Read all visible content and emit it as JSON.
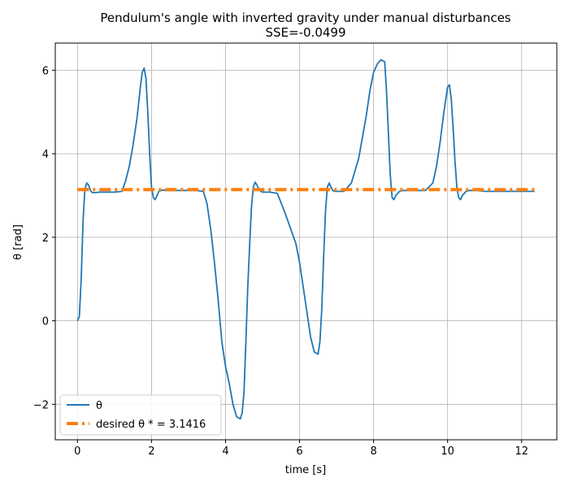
{
  "chart_data": {
    "type": "line",
    "title": "Pendulum's angle with inverted gravity under manual disturbances",
    "subtitle": "SSE=-0.0499",
    "xlabel": "time [s]",
    "ylabel": "θ [rad]",
    "xlim": [
      -0.6,
      12.95
    ],
    "ylim": [
      -2.85,
      6.65
    ],
    "xticks": [
      0,
      2,
      4,
      6,
      8,
      10,
      12
    ],
    "yticks": [
      -2,
      0,
      2,
      4,
      6
    ],
    "xtick_labels": [
      "0",
      "2",
      "4",
      "6",
      "8",
      "10",
      "12"
    ],
    "ytick_labels": [
      "−2",
      "0",
      "2",
      "4",
      "6"
    ],
    "grid": true,
    "legend_position": "lower-left",
    "series": [
      {
        "name": "θ",
        "color": "#1f77b4",
        "style": "solid",
        "x": [
          0.0,
          0.05,
          0.1,
          0.15,
          0.2,
          0.25,
          0.3,
          0.35,
          0.4,
          0.5,
          0.6,
          0.8,
          1.0,
          1.2,
          1.3,
          1.4,
          1.5,
          1.6,
          1.65,
          1.7,
          1.75,
          1.8,
          1.85,
          1.9,
          1.95,
          2.0,
          2.05,
          2.1,
          2.15,
          2.2,
          2.3,
          2.4,
          2.6,
          2.8,
          3.0,
          3.2,
          3.4,
          3.5,
          3.6,
          3.7,
          3.8,
          3.9,
          4.0,
          4.1,
          4.2,
          4.3,
          4.4,
          4.45,
          4.5,
          4.55,
          4.6,
          4.65,
          4.7,
          4.75,
          4.8,
          4.85,
          4.9,
          4.95,
          5.0,
          5.1,
          5.2,
          5.4,
          5.6,
          5.7,
          5.8,
          5.9,
          6.0,
          6.1,
          6.2,
          6.3,
          6.4,
          6.5,
          6.55,
          6.6,
          6.65,
          6.7,
          6.75,
          6.8,
          6.85,
          6.9,
          6.95,
          7.0,
          7.1,
          7.2,
          7.4,
          7.6,
          7.8,
          7.9,
          8.0,
          8.1,
          8.2,
          8.3,
          8.35,
          8.4,
          8.45,
          8.5,
          8.55,
          8.6,
          8.7,
          8.8,
          9.0,
          9.2,
          9.4,
          9.6,
          9.7,
          9.8,
          9.9,
          10.0,
          10.05,
          10.1,
          10.15,
          10.2,
          10.25,
          10.3,
          10.35,
          10.4,
          10.5,
          10.6,
          10.8,
          11.0,
          11.5,
          12.0,
          12.35
        ],
        "y": [
          0.0,
          0.1,
          1.0,
          2.4,
          3.15,
          3.3,
          3.25,
          3.12,
          3.07,
          3.07,
          3.08,
          3.08,
          3.08,
          3.1,
          3.35,
          3.7,
          4.2,
          4.8,
          5.2,
          5.6,
          5.95,
          6.05,
          5.8,
          5.0,
          4.0,
          3.2,
          2.95,
          2.9,
          3.0,
          3.1,
          3.13,
          3.12,
          3.12,
          3.12,
          3.12,
          3.12,
          3.1,
          2.8,
          2.2,
          1.4,
          0.5,
          -0.5,
          -1.1,
          -1.5,
          -2.0,
          -2.3,
          -2.35,
          -2.2,
          -1.7,
          -0.5,
          0.8,
          1.8,
          2.7,
          3.2,
          3.32,
          3.25,
          3.15,
          3.1,
          3.08,
          3.08,
          3.08,
          3.05,
          2.6,
          2.35,
          2.1,
          1.85,
          1.4,
          0.8,
          0.2,
          -0.4,
          -0.75,
          -0.8,
          -0.5,
          0.3,
          1.5,
          2.6,
          3.2,
          3.3,
          3.2,
          3.12,
          3.1,
          3.1,
          3.1,
          3.1,
          3.3,
          3.9,
          4.9,
          5.5,
          5.95,
          6.15,
          6.25,
          6.2,
          5.5,
          4.5,
          3.5,
          2.95,
          2.9,
          3.0,
          3.1,
          3.12,
          3.12,
          3.12,
          3.12,
          3.3,
          3.7,
          4.3,
          5.0,
          5.6,
          5.65,
          5.3,
          4.6,
          3.8,
          3.2,
          2.95,
          2.9,
          3.0,
          3.1,
          3.12,
          3.12,
          3.1,
          3.1,
          3.1,
          3.1
        ]
      },
      {
        "name": "desired θ *  = 3.1416",
        "color": "#ff7f0e",
        "style": "dash-dot",
        "x": [
          0.0,
          12.35
        ],
        "y": [
          3.1416,
          3.1416
        ]
      }
    ]
  }
}
